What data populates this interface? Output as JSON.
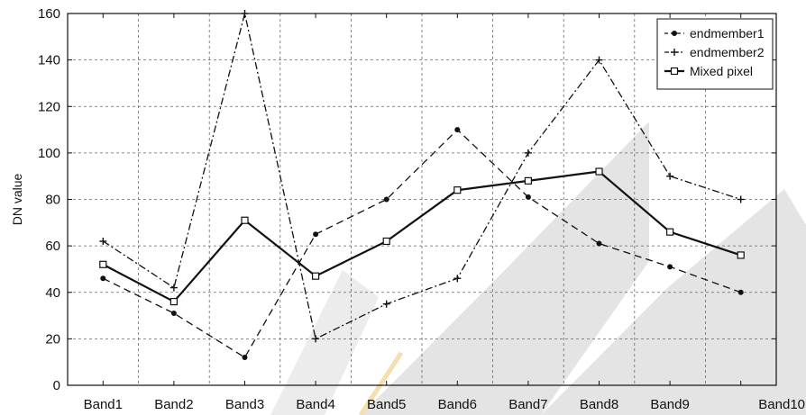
{
  "chart_data": {
    "type": "line",
    "categories": [
      "Band1",
      "Band2",
      "Band3",
      "Band4",
      "Band5",
      "Band6",
      "Band7",
      "Band8",
      "Band9",
      "Band10"
    ],
    "ylabel": "DN value",
    "xlabel": "",
    "ylim": [
      0,
      160
    ],
    "yticks": [
      0,
      20,
      40,
      60,
      80,
      100,
      120,
      140,
      160
    ],
    "grid": true,
    "legend_position": "top-right",
    "series": [
      {
        "name": "endmember1",
        "values": [
          46,
          31,
          12,
          65,
          80,
          110,
          81,
          61,
          51,
          40
        ],
        "line_style": "dashed",
        "marker": "dot",
        "color": "#111111"
      },
      {
        "name": "endmember2",
        "values": [
          62,
          42,
          160,
          20,
          35,
          46,
          100,
          140,
          90,
          80
        ],
        "line_style": "dash-dot",
        "marker": "plus",
        "color": "#111111"
      },
      {
        "name": "Mixed pixel",
        "values": [
          52,
          36,
          71,
          47,
          62,
          84,
          88,
          92,
          66,
          56
        ],
        "line_style": "solid",
        "marker": "square",
        "color": "#111111"
      }
    ]
  }
}
